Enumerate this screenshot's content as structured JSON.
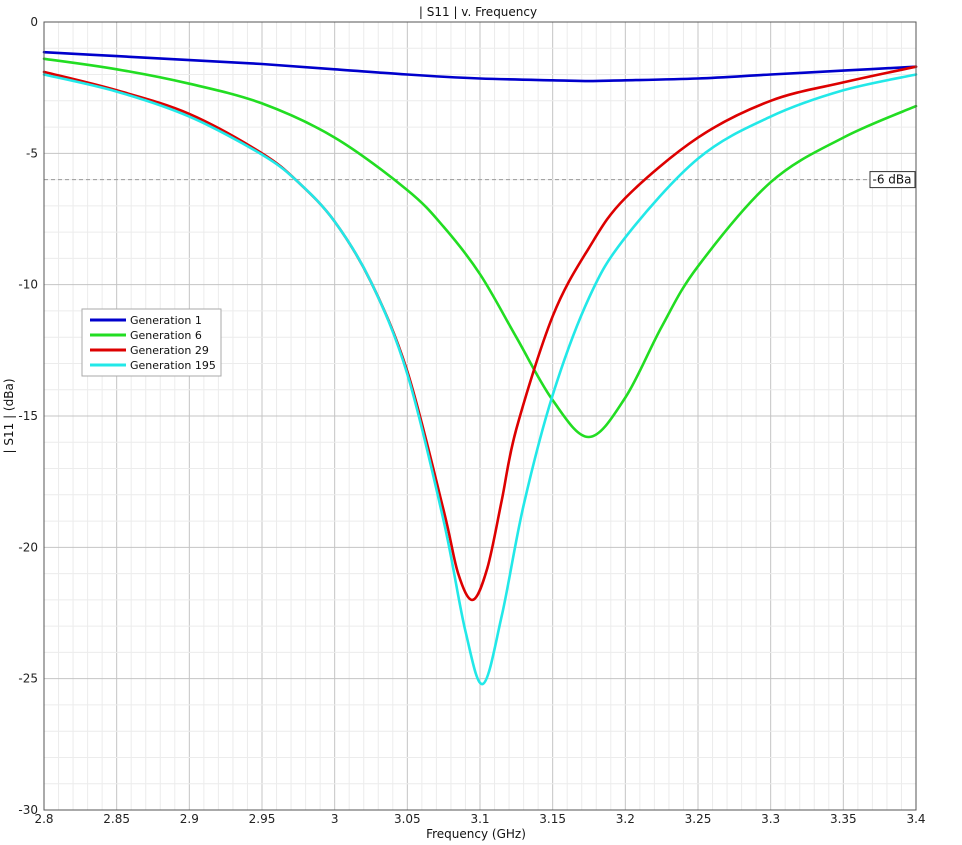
{
  "chart_data": {
    "type": "line",
    "title": "| S11 | v. Frequency",
    "xlabel": "Frequency (GHz)",
    "ylabel": "| S11 | (dBa)",
    "xlim": [
      2.8,
      3.4
    ],
    "ylim": [
      -30,
      0
    ],
    "x_ticks": [
      "2.8",
      "2.85",
      "2.9",
      "2.95",
      "3",
      "3.05",
      "3.1",
      "3.15",
      "3.2",
      "3.25",
      "3.3",
      "3.35",
      "3.4"
    ],
    "y_ticks": [
      "0",
      "-5",
      "-10",
      "-15",
      "-20",
      "-25",
      "-30"
    ],
    "grid": true,
    "legend_position": "middle-left",
    "reference_line": {
      "y": -6,
      "label": "-6 dBa",
      "color": "#9a9a9a"
    },
    "series": [
      {
        "name": "Generation 1",
        "color": "#0000cc",
        "x": [
          2.8,
          2.85,
          2.9,
          2.95,
          3.0,
          3.05,
          3.1,
          3.15,
          3.175,
          3.2,
          3.25,
          3.3,
          3.35,
          3.4
        ],
        "y": [
          -1.15,
          -1.3,
          -1.45,
          -1.6,
          -1.8,
          -2.0,
          -2.15,
          -2.22,
          -2.25,
          -2.22,
          -2.15,
          -2.0,
          -1.85,
          -1.7
        ]
      },
      {
        "name": "Generation 6",
        "color": "#22dd22",
        "x": [
          2.8,
          2.85,
          2.9,
          2.95,
          3.0,
          3.05,
          3.075,
          3.1,
          3.125,
          3.15,
          3.175,
          3.2,
          3.225,
          3.25,
          3.3,
          3.35,
          3.4
        ],
        "y": [
          -1.4,
          -1.8,
          -2.35,
          -3.1,
          -4.4,
          -6.4,
          -7.8,
          -9.6,
          -12.0,
          -14.4,
          -15.8,
          -14.3,
          -11.6,
          -9.3,
          -6.1,
          -4.4,
          -3.2
        ]
      },
      {
        "name": "Generation 29",
        "color": "#dd0000",
        "x": [
          2.8,
          2.85,
          2.9,
          2.95,
          2.975,
          3.0,
          3.025,
          3.05,
          3.075,
          3.085,
          3.095,
          3.105,
          3.115,
          3.125,
          3.15,
          3.175,
          3.2,
          3.25,
          3.3,
          3.35,
          3.4
        ],
        "y": [
          -1.9,
          -2.6,
          -3.5,
          -5.0,
          -6.1,
          -7.6,
          -9.9,
          -13.3,
          -18.6,
          -21.0,
          -22.0,
          -20.8,
          -18.2,
          -15.5,
          -11.2,
          -8.6,
          -6.7,
          -4.4,
          -3.0,
          -2.3,
          -1.7
        ]
      },
      {
        "name": "Generation 195",
        "color": "#22e8e8",
        "x": [
          2.8,
          2.85,
          2.9,
          2.95,
          2.975,
          3.0,
          3.025,
          3.05,
          3.075,
          3.09,
          3.102,
          3.115,
          3.13,
          3.15,
          3.175,
          3.2,
          3.25,
          3.3,
          3.35,
          3.4
        ],
        "y": [
          -2.0,
          -2.65,
          -3.6,
          -5.05,
          -6.1,
          -7.6,
          -9.9,
          -13.4,
          -19.0,
          -23.2,
          -25.2,
          -22.6,
          -18.4,
          -14.2,
          -10.5,
          -8.2,
          -5.2,
          -3.6,
          -2.6,
          -2.0
        ]
      }
    ]
  }
}
